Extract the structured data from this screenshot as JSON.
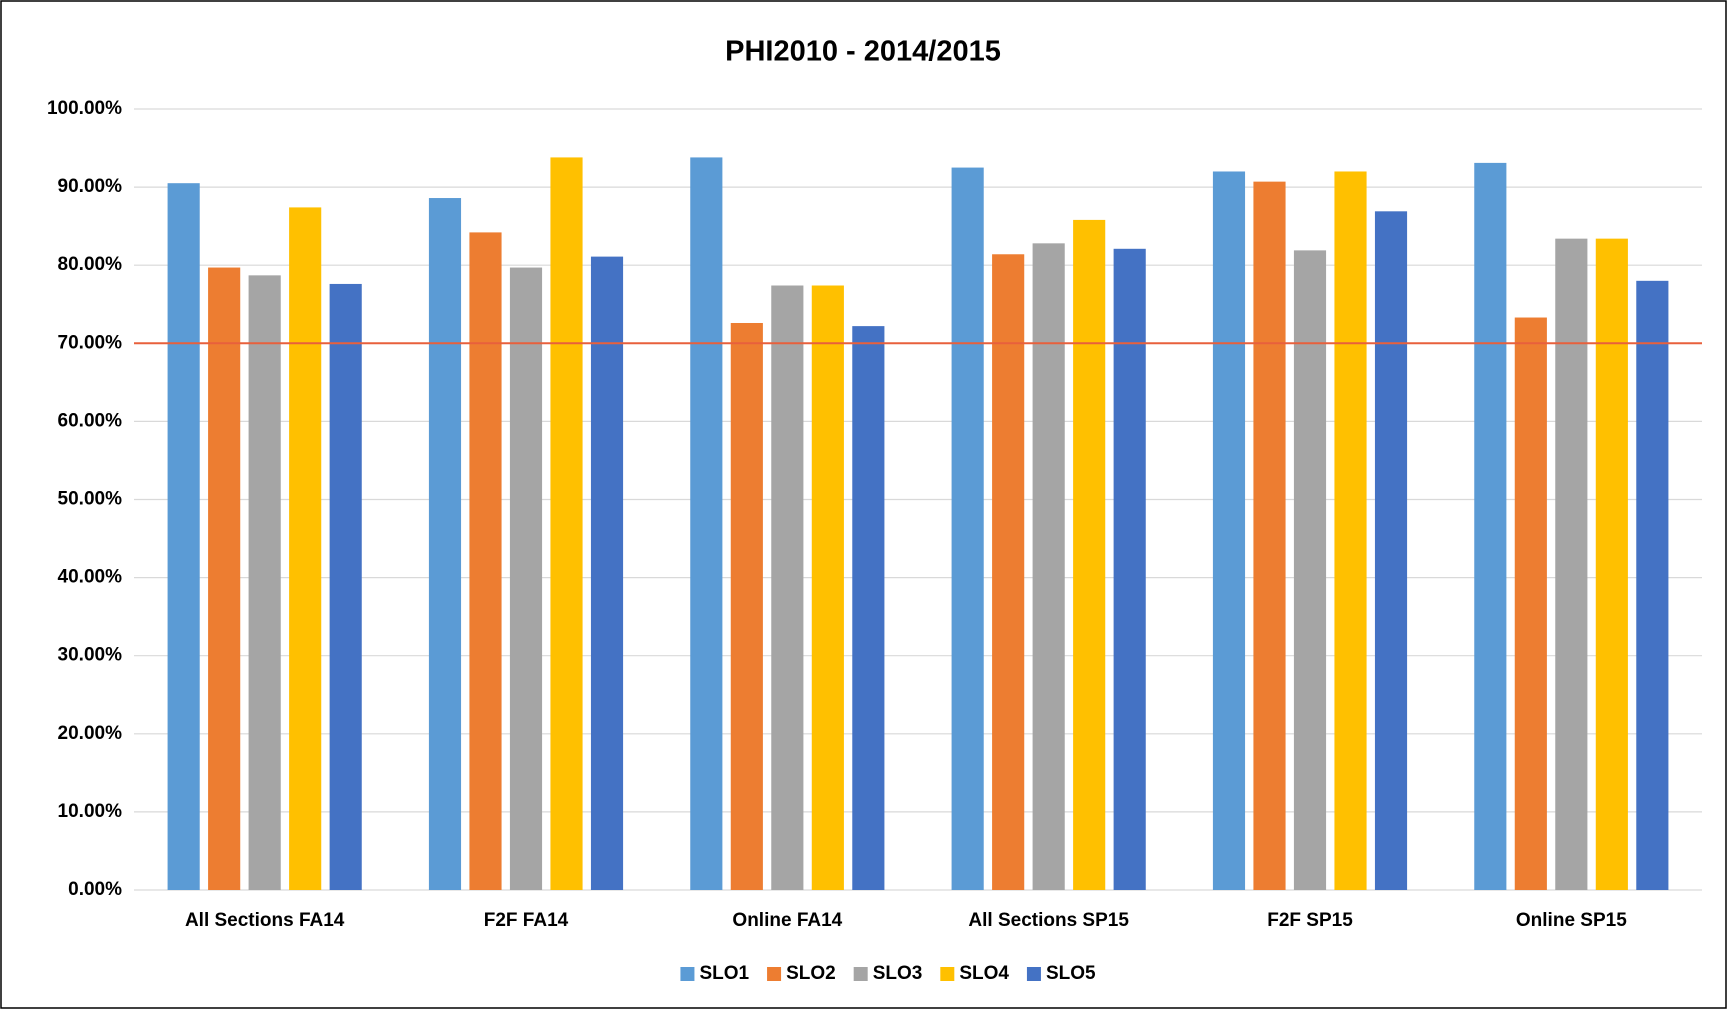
{
  "chart_data": {
    "type": "bar",
    "title": "PHI2010 - 2014/2015",
    "categories": [
      "All Sections FA14",
      "F2F FA14",
      "Online FA14",
      "All Sections SP15",
      "F2F SP15",
      "Online SP15"
    ],
    "series": [
      {
        "name": "SLO1",
        "color": "#5b9bd5",
        "values": [
          90.5,
          88.6,
          93.8,
          92.5,
          92.0,
          93.1
        ]
      },
      {
        "name": "SLO2",
        "color": "#ed7d31",
        "values": [
          79.7,
          84.2,
          72.6,
          81.4,
          90.7,
          73.3
        ]
      },
      {
        "name": "SLO3",
        "color": "#a5a5a5",
        "values": [
          78.7,
          79.7,
          77.4,
          82.8,
          81.9,
          83.4
        ]
      },
      {
        "name": "SLO4",
        "color": "#ffc000",
        "values": [
          87.4,
          93.8,
          77.4,
          85.8,
          92.0,
          83.4
        ]
      },
      {
        "name": "SLO5",
        "color": "#4472c4",
        "values": [
          77.6,
          81.1,
          72.2,
          82.1,
          86.9,
          78.0
        ]
      }
    ],
    "ylim": [
      0,
      100
    ],
    "yticks": [
      {
        "value": 0,
        "label": "0.00%"
      },
      {
        "value": 10,
        "label": "10.00%"
      },
      {
        "value": 20,
        "label": "20.00%"
      },
      {
        "value": 30,
        "label": "30.00%"
      },
      {
        "value": 40,
        "label": "40.00%"
      },
      {
        "value": 50,
        "label": "50.00%"
      },
      {
        "value": 60,
        "label": "60.00%"
      },
      {
        "value": 70,
        "label": "70.00%"
      },
      {
        "value": 80,
        "label": "80.00%"
      },
      {
        "value": 90,
        "label": "90.00%"
      },
      {
        "value": 100,
        "label": "100.00%"
      }
    ],
    "grid": true,
    "reference_line": {
      "value": 70,
      "color": "#e8603c"
    },
    "legend": "bottom"
  }
}
